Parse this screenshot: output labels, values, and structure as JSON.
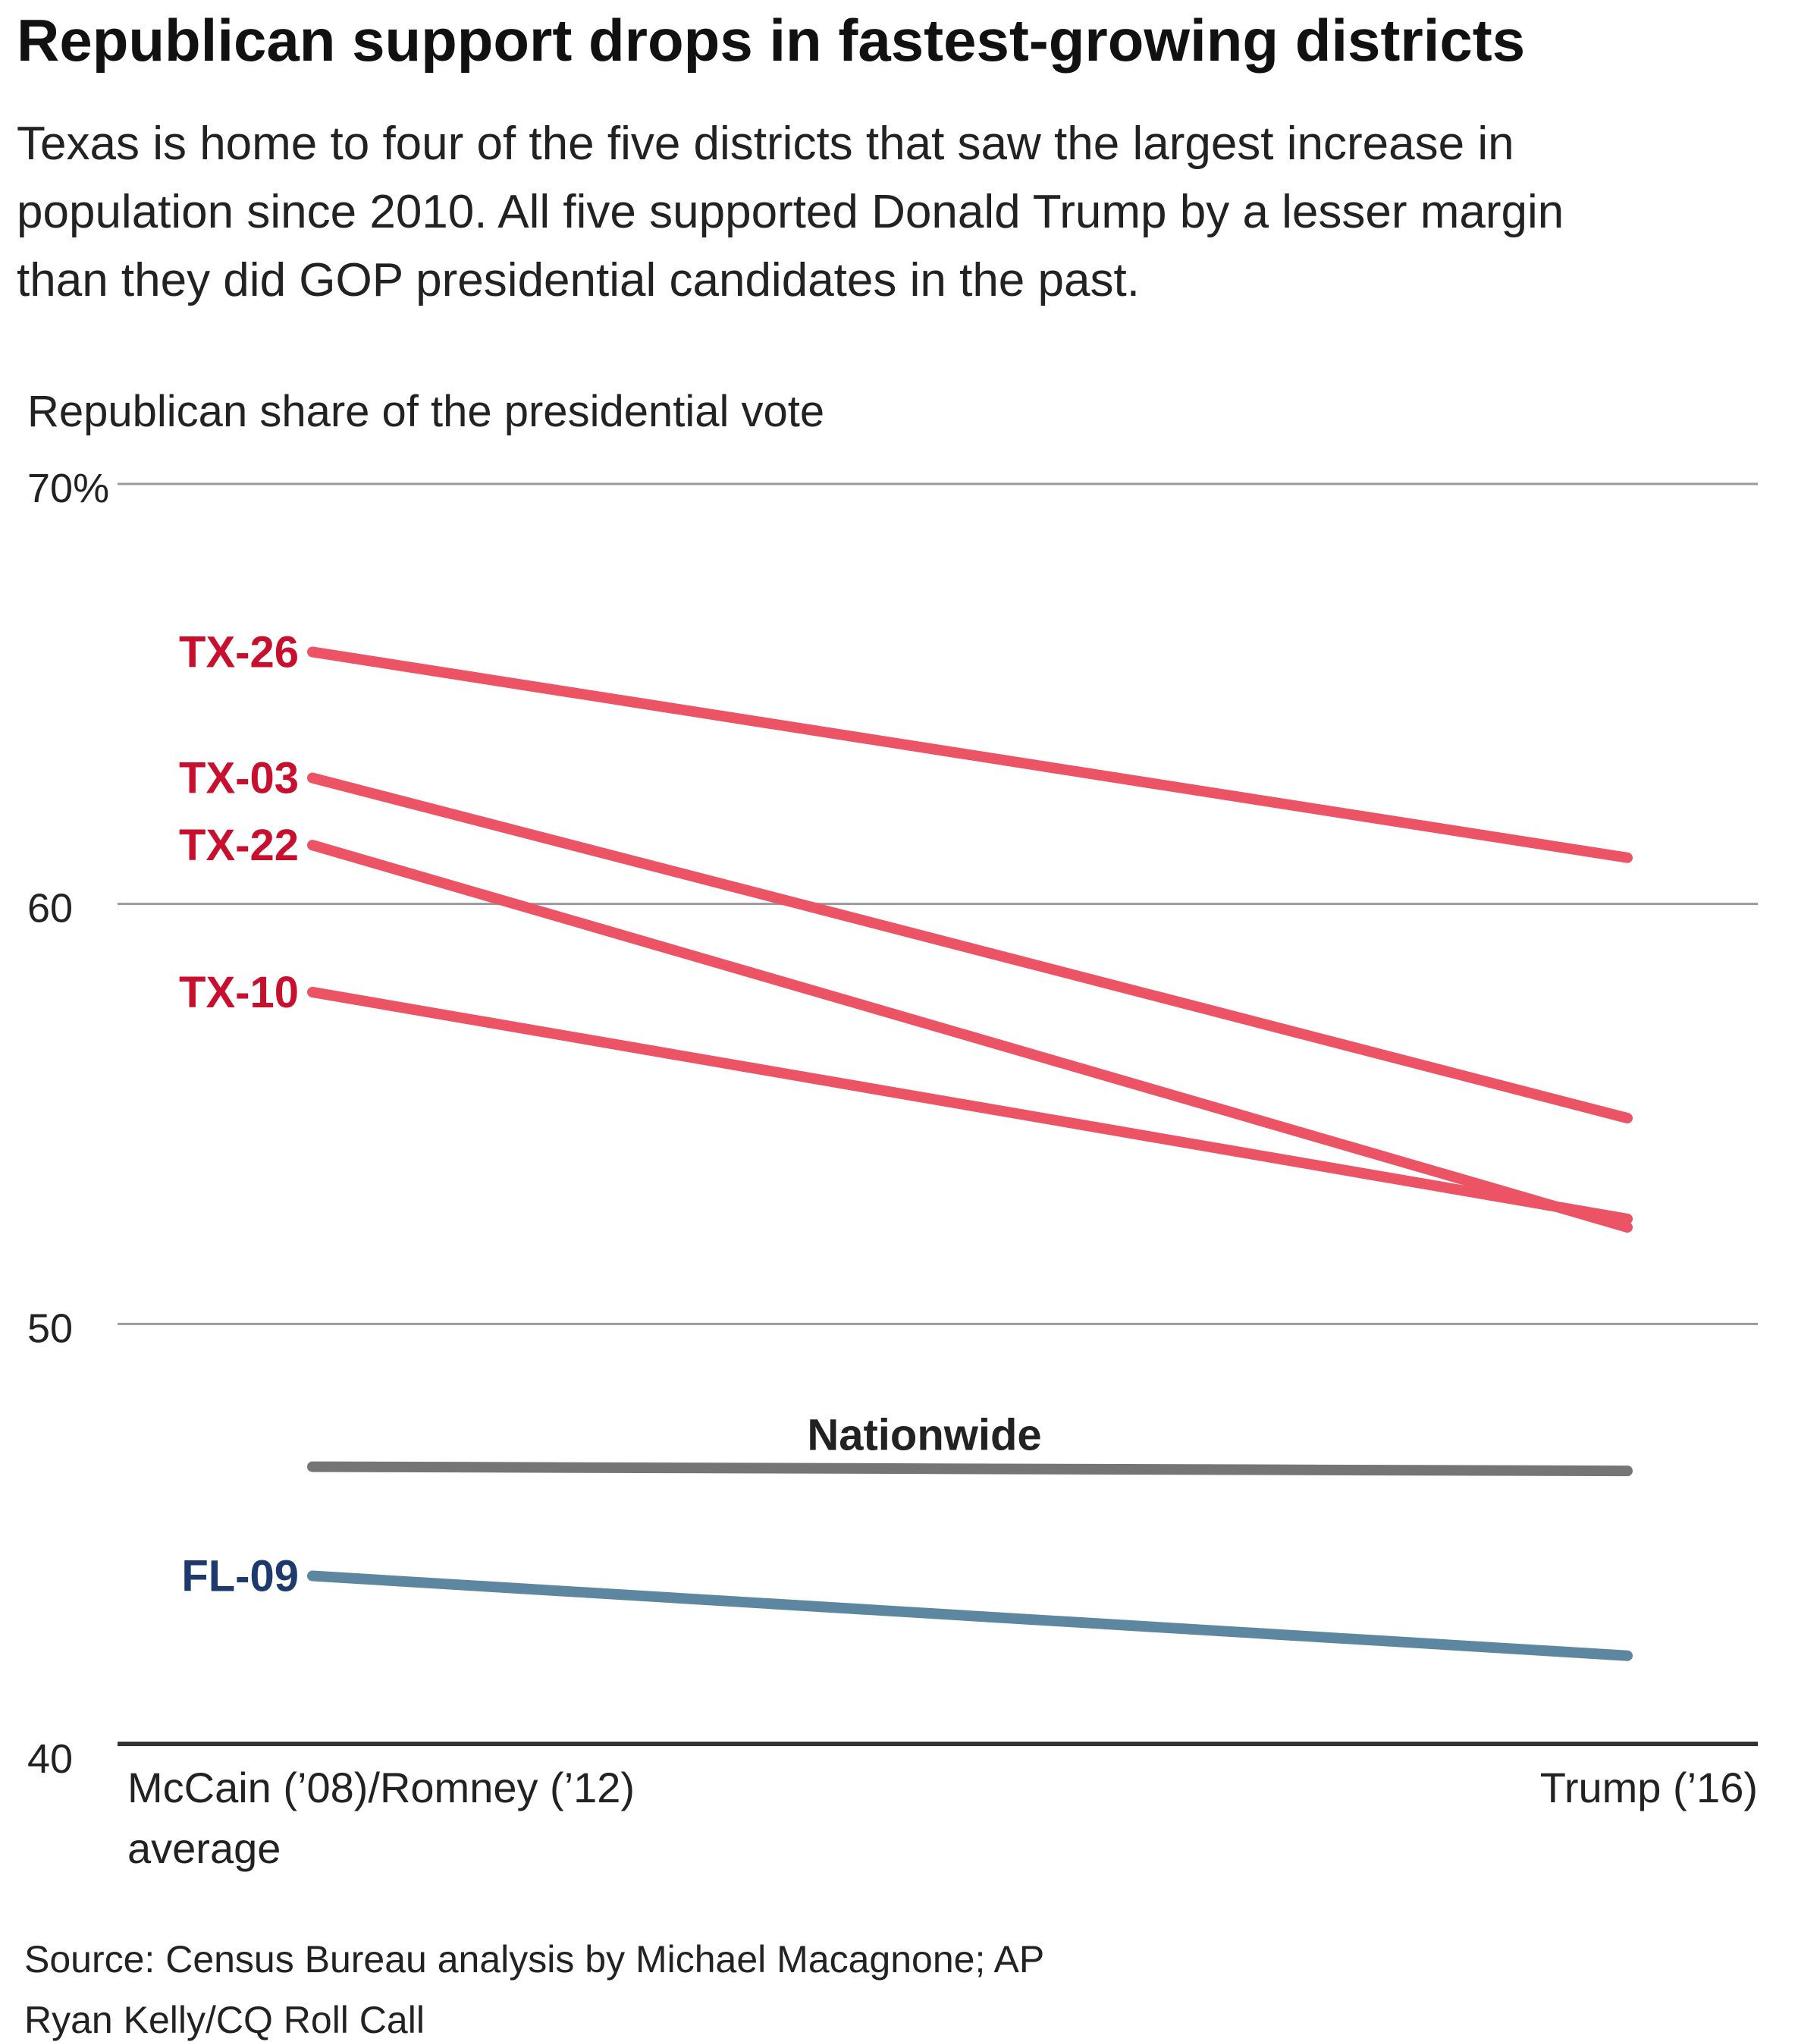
{
  "title": "Republican support drops in fastest-growing districts",
  "subtitle": {
    "lines": [
      "Texas is home to four of the five districts that saw the largest increase in",
      "population since 2010. All five supported Donald Trump by a lesser margin",
      "than they did GOP presidential candidates in the past."
    ]
  },
  "source": "Source: Census Bureau analysis by Michael Macagnone; AP",
  "credit": "Ryan Kelly/CQ Roll Call",
  "chart_data": {
    "type": "line",
    "ylabel": "Republican share of the presidential vote",
    "ylim": [
      40,
      70
    ],
    "yticks": [
      {
        "value": 70,
        "label": "70%"
      },
      {
        "value": 60,
        "label": "60"
      },
      {
        "value": 50,
        "label": "50"
      },
      {
        "value": 40,
        "label": "40"
      }
    ],
    "grid": true,
    "categories": [
      {
        "lines": [
          "McCain (’08)/Romney (’12)",
          "average"
        ]
      },
      {
        "lines": [
          "Trump (’16)"
        ]
      }
    ],
    "series": [
      {
        "name": "TX-26",
        "values": [
          66.0,
          61.1
        ],
        "color": "#ec5466",
        "label_color": "#c8102e"
      },
      {
        "name": "TX-03",
        "values": [
          63.0,
          54.9
        ],
        "color": "#ec5466",
        "label_color": "#c8102e"
      },
      {
        "name": "TX-22",
        "values": [
          61.4,
          52.3
        ],
        "color": "#ec5466",
        "label_color": "#c8102e"
      },
      {
        "name": "TX-10",
        "values": [
          57.9,
          52.5
        ],
        "color": "#ec5466",
        "label_color": "#c8102e"
      },
      {
        "name": "Nationwide",
        "values": [
          46.6,
          46.5
        ],
        "color": "#757575",
        "label_color": "#222222",
        "label_position": "above-middle"
      },
      {
        "name": "FL-09",
        "values": [
          44.0,
          42.1
        ],
        "color": "#5d87a1",
        "label_color": "#1c3a6e"
      }
    ]
  }
}
